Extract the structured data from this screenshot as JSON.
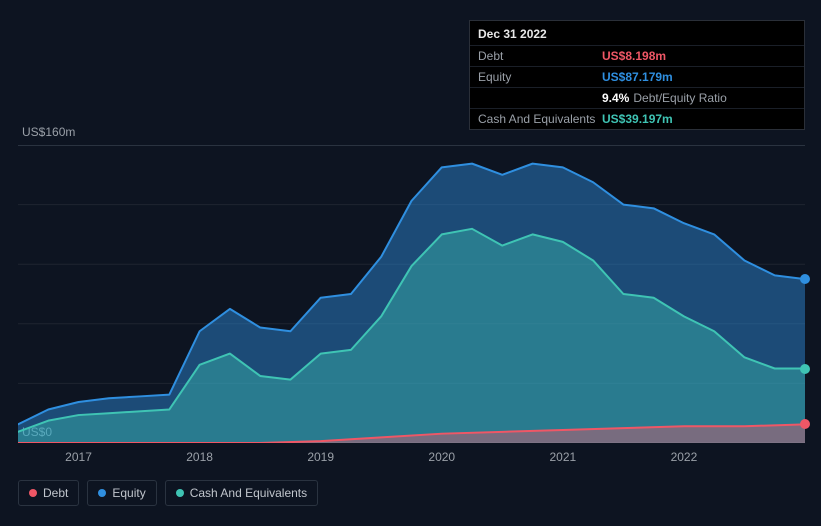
{
  "tooltip": {
    "date": "Dec 31 2022",
    "rows": [
      {
        "label": "Debt",
        "value": "US$8.198m",
        "color": "#ef5766"
      },
      {
        "label": "Equity",
        "value": "US$87.179m",
        "color": "#2f8fe0"
      },
      {
        "label": "",
        "ratio": "9.4%",
        "ratio_label": "Debt/Equity Ratio"
      },
      {
        "label": "Cash And Equivalents",
        "value": "US$39.197m",
        "color": "#3fc4b4"
      }
    ]
  },
  "chart": {
    "type": "area",
    "background_color": "#0d1421",
    "grid_color": "#1e2530",
    "axis_color": "#2a3340",
    "ylim": [
      0,
      160
    ],
    "y_top_label": "US$160m",
    "y_bottom_label": "US$0",
    "y_gridlines": [
      0,
      32,
      64,
      96,
      128,
      160
    ],
    "x_domain": [
      2016.5,
      2023.0
    ],
    "x_ticks": [
      2017,
      2018,
      2019,
      2020,
      2021,
      2022
    ],
    "x_tick_labels": [
      "2017",
      "2018",
      "2019",
      "2020",
      "2021",
      "2022"
    ],
    "series": [
      {
        "name": "Equity",
        "color": "#2f8fe0",
        "fill": "rgba(47,143,224,0.45)",
        "line_width": 2,
        "data": [
          [
            2016.5,
            10
          ],
          [
            2016.75,
            18
          ],
          [
            2017.0,
            22
          ],
          [
            2017.25,
            24
          ],
          [
            2017.5,
            25
          ],
          [
            2017.75,
            26
          ],
          [
            2018.0,
            60
          ],
          [
            2018.25,
            72
          ],
          [
            2018.5,
            62
          ],
          [
            2018.75,
            60
          ],
          [
            2019.0,
            78
          ],
          [
            2019.25,
            80
          ],
          [
            2019.5,
            100
          ],
          [
            2019.75,
            130
          ],
          [
            2020.0,
            148
          ],
          [
            2020.25,
            150
          ],
          [
            2020.5,
            144
          ],
          [
            2020.75,
            150
          ],
          [
            2021.0,
            148
          ],
          [
            2021.25,
            140
          ],
          [
            2021.5,
            128
          ],
          [
            2021.75,
            126
          ],
          [
            2022.0,
            118
          ],
          [
            2022.25,
            112
          ],
          [
            2022.5,
            98
          ],
          [
            2022.75,
            90
          ],
          [
            2023.0,
            88
          ]
        ]
      },
      {
        "name": "Cash And Equivalents",
        "color": "#3fc4b4",
        "fill": "rgba(63,196,180,0.40)",
        "line_width": 2,
        "data": [
          [
            2016.5,
            6
          ],
          [
            2016.75,
            12
          ],
          [
            2017.0,
            15
          ],
          [
            2017.25,
            16
          ],
          [
            2017.5,
            17
          ],
          [
            2017.75,
            18
          ],
          [
            2018.0,
            42
          ],
          [
            2018.25,
            48
          ],
          [
            2018.5,
            36
          ],
          [
            2018.75,
            34
          ],
          [
            2019.0,
            48
          ],
          [
            2019.25,
            50
          ],
          [
            2019.5,
            68
          ],
          [
            2019.75,
            95
          ],
          [
            2020.0,
            112
          ],
          [
            2020.25,
            115
          ],
          [
            2020.5,
            106
          ],
          [
            2020.75,
            112
          ],
          [
            2021.0,
            108
          ],
          [
            2021.25,
            98
          ],
          [
            2021.5,
            80
          ],
          [
            2021.75,
            78
          ],
          [
            2022.0,
            68
          ],
          [
            2022.25,
            60
          ],
          [
            2022.5,
            46
          ],
          [
            2022.75,
            40
          ],
          [
            2023.0,
            40
          ]
        ]
      },
      {
        "name": "Debt",
        "color": "#ef5766",
        "fill": "rgba(239,87,102,0.40)",
        "line_width": 2,
        "data": [
          [
            2016.5,
            0
          ],
          [
            2017.0,
            0
          ],
          [
            2017.5,
            0
          ],
          [
            2018.0,
            0
          ],
          [
            2018.5,
            0
          ],
          [
            2019.0,
            1
          ],
          [
            2019.5,
            3
          ],
          [
            2020.0,
            5
          ],
          [
            2020.5,
            6
          ],
          [
            2021.0,
            7
          ],
          [
            2021.5,
            8
          ],
          [
            2022.0,
            9
          ],
          [
            2022.5,
            9
          ],
          [
            2023.0,
            10
          ]
        ]
      }
    ],
    "endpoints": [
      {
        "color": "#2f8fe0",
        "value": 88
      },
      {
        "color": "#3fc4b4",
        "value": 40
      },
      {
        "color": "#ef5766",
        "value": 10
      }
    ]
  },
  "legend": {
    "items": [
      {
        "label": "Debt",
        "color": "#ef5766"
      },
      {
        "label": "Equity",
        "color": "#2f8fe0"
      },
      {
        "label": "Cash And Equivalents",
        "color": "#3fc4b4"
      }
    ]
  }
}
